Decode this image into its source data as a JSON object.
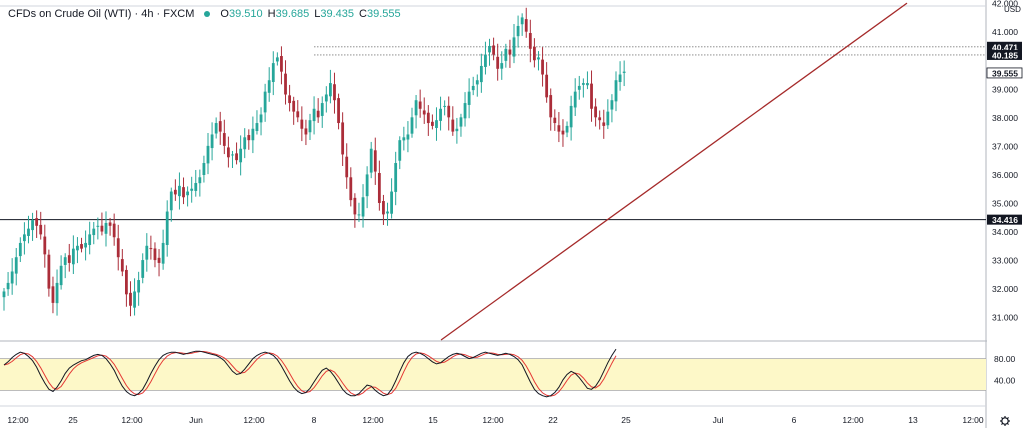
{
  "header": {
    "symbol_label": "CFDs on Crude Oil (WTI) · 4h · FXCM",
    "open_label": "O",
    "open": "39.510",
    "high_label": "H",
    "high": "39.685",
    "low_label": "L",
    "low": "39.435",
    "close_label": "C",
    "close": "39.555"
  },
  "chart_data": {
    "type": "candlestick",
    "currency": "USD",
    "price_axis": {
      "ylim": [
        30.2,
        41.9
      ],
      "ticks": [
        "31.000",
        "32.000",
        "33.000",
        "34.000",
        "35.000",
        "36.000",
        "37.000",
        "38.000",
        "39.000",
        "41.000",
        "42.000"
      ],
      "badges": [
        {
          "value": "40.471",
          "style": "dark"
        },
        {
          "value": "40.185",
          "style": "dark"
        },
        {
          "value": "39.555",
          "style": "light"
        },
        {
          "value": "34.416",
          "style": "dark"
        }
      ]
    },
    "time_axis": {
      "labels": [
        "12:00",
        "25",
        "12:00",
        "Jun",
        "12:00",
        "8",
        "12:00",
        "15",
        "12:00",
        "22",
        "25",
        "Jul",
        "6",
        "12:00",
        "13",
        "12:00"
      ]
    },
    "horizontal_levels": [
      34.416,
      40.471,
      40.185
    ],
    "trendline": {
      "from_index": 63,
      "from_price": 30.2,
      "to_index": 300,
      "to_price": 42.0,
      "color": "#a52a2a"
    },
    "candles_anchor_closes": [
      31.9,
      32.2,
      32.6,
      33.1,
      33.6,
      33.9,
      34.1,
      34.4,
      34.2,
      33.9,
      33.2,
      32.0,
      31.5,
      32.2,
      32.8,
      33.1,
      32.9,
      33.4,
      33.5,
      33.4,
      33.6,
      33.9,
      34.1,
      34.2,
      34.0,
      34.3,
      34.2,
      33.8,
      33.1,
      32.6,
      31.8,
      31.4,
      31.9,
      32.3,
      33.0,
      33.5,
      33.4,
      33.0,
      32.9,
      33.6,
      34.7,
      35.4,
      35.3,
      35.6,
      35.2,
      35.4,
      35.5,
      35.7,
      35.9,
      36.4,
      37.0,
      37.4,
      37.8,
      37.5,
      37.0,
      36.6,
      36.7,
      36.5,
      36.9,
      37.3,
      37.2,
      37.6,
      37.8,
      38.1,
      38.9,
      39.3,
      39.9,
      40.1,
      39.6,
      38.8,
      38.5,
      38.2,
      38.0,
      37.6,
      37.4,
      37.9,
      38.3,
      38.0,
      38.5,
      38.8,
      39.2,
      38.6,
      37.8,
      36.7,
      35.9,
      35.1,
      34.6,
      34.6,
      35.2,
      36.0,
      36.9,
      36.1,
      35.0,
      34.6,
      34.7,
      35.4,
      36.4,
      37.2,
      37.3,
      37.4,
      38.0,
      38.6,
      38.3,
      38.1,
      37.8,
      37.7,
      37.9,
      38.3,
      38.4,
      38.0,
      37.5,
      37.6,
      38.0,
      38.5,
      38.9,
      39.1,
      39.3,
      39.8,
      40.2,
      40.5,
      40.2,
      39.7,
      39.9,
      40.4,
      40.2,
      40.8,
      41.2,
      41.5,
      41.0,
      40.4,
      40.0,
      40.1,
      39.5,
      38.7,
      38.0,
      37.8,
      37.5,
      37.4,
      37.7,
      38.4,
      38.9,
      39.1,
      39.2,
      39.2,
      38.3,
      38.0,
      37.9,
      37.7,
      38.2,
      38.6,
      39.3,
      39.5,
      39.6
    ],
    "stochastic": {
      "ylim": [
        0,
        100
      ],
      "ticks": [
        "80.00",
        "40.00"
      ],
      "band": [
        20,
        80
      ],
      "k_color": "#131722",
      "d_color": "#e53935",
      "k": [
        68,
        74,
        82,
        88,
        92,
        90,
        84,
        76,
        64,
        48,
        34,
        22,
        18,
        26,
        38,
        52,
        62,
        68,
        72,
        76,
        78,
        82,
        86,
        88,
        86,
        80,
        70,
        58,
        42,
        28,
        18,
        12,
        10,
        14,
        22,
        36,
        52,
        66,
        78,
        86,
        90,
        92,
        92,
        90,
        88,
        90,
        92,
        94,
        94,
        92,
        90,
        88,
        86,
        82,
        76,
        66,
        56,
        50,
        52,
        60,
        70,
        80,
        86,
        90,
        92,
        90,
        86,
        78,
        66,
        52,
        38,
        26,
        18,
        14,
        16,
        24,
        36,
        48,
        58,
        62,
        56,
        46,
        34,
        22,
        14,
        10,
        10,
        14,
        22,
        30,
        28,
        20,
        14,
        10,
        12,
        22,
        38,
        56,
        72,
        84,
        90,
        92,
        90,
        86,
        80,
        74,
        70,
        72,
        78,
        84,
        88,
        90,
        88,
        84,
        80,
        82,
        86,
        90,
        92,
        90,
        88,
        86,
        88,
        90,
        88,
        84,
        78,
        68,
        52,
        36,
        22,
        14,
        10,
        8,
        10,
        16,
        26,
        40,
        50,
        56,
        52,
        44,
        34,
        24,
        22,
        28,
        40,
        56,
        72,
        86,
        98
      ]
    }
  }
}
